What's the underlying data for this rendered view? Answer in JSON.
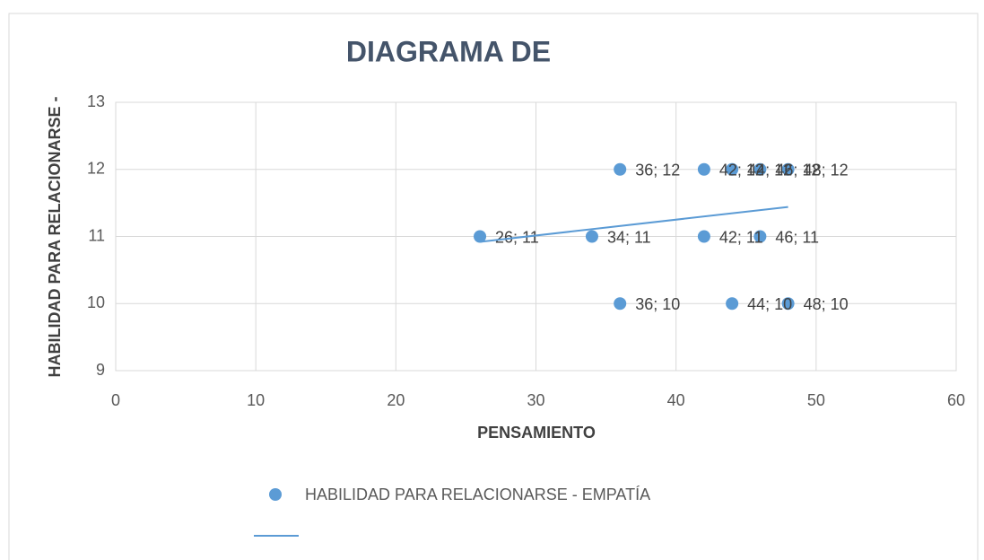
{
  "chart_data": {
    "type": "scatter",
    "title": "DIAGRAMA DE",
    "xlabel": "PENSAMIENTO",
    "ylabel": "HABILIDAD PARA RELACIONARSE -",
    "xlim": [
      0,
      60
    ],
    "xticks": [
      0,
      10,
      20,
      30,
      40,
      50,
      60
    ],
    "ylim": [
      9,
      13
    ],
    "yticks": [
      9,
      10,
      11,
      12,
      13
    ],
    "grid": true,
    "series": [
      {
        "name": "HABILIDAD PARA RELACIONARSE - EMPATÍA",
        "color": "#5b9bd5",
        "x": [
          26,
          34,
          36,
          36,
          42,
          42,
          44,
          44,
          46,
          46,
          48,
          48
        ],
        "values": [
          11,
          11,
          12,
          10,
          12,
          11,
          12,
          10,
          12,
          11,
          12,
          10
        ],
        "value_labels": [
          "26; 11",
          "34; 11",
          "36; 12",
          "36; 10",
          "42; 12",
          "42; 11",
          "44; 12",
          "44; 10",
          "46; 12",
          "46; 11",
          "48; 12",
          "48; 10"
        ]
      }
    ],
    "trendline": {
      "color": "#5b9bd5",
      "x": [
        26,
        48
      ],
      "values": [
        10.92,
        11.44
      ]
    },
    "legend": "bottom"
  }
}
